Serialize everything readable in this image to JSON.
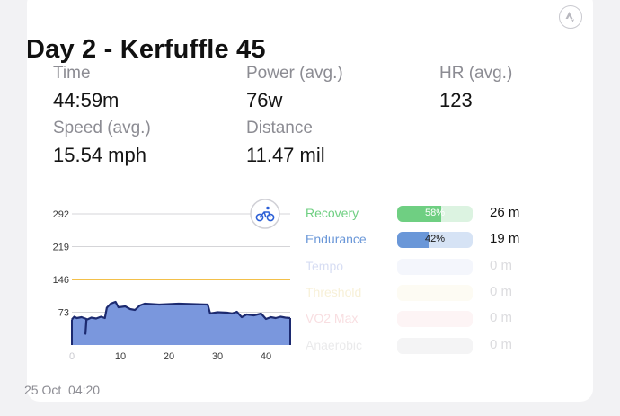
{
  "activity": {
    "title": "Day 2 - Kerfuffle 45",
    "date": "25 Oct",
    "time_of_day": "04:20",
    "badge_icon": "strava-icon",
    "sport_icon": "bicycle-icon"
  },
  "stats": {
    "time": {
      "label": "Time",
      "value": "44:59m"
    },
    "power": {
      "label": "Power (avg.)",
      "value": "76w"
    },
    "hr": {
      "label": "HR (avg.)",
      "value": "123"
    },
    "speed": {
      "label": "Speed (avg.)",
      "value": "15.54 mph"
    },
    "distance": {
      "label": "Distance",
      "value": "11.47 mil"
    }
  },
  "chart_data": {
    "type": "area",
    "x_ticks": [
      "0",
      "10",
      "20",
      "30",
      "40"
    ],
    "y_ticks": [
      "292",
      "219",
      "146",
      "73"
    ],
    "xlim": [
      0,
      45
    ],
    "ylim": [
      0,
      292
    ],
    "threshold_line": 146,
    "series": [
      {
        "points": [
          [
            0,
            57
          ],
          [
            0.5,
            63
          ],
          [
            1,
            60
          ],
          [
            2,
            62
          ],
          [
            3,
            58
          ],
          [
            2.8,
            25
          ],
          [
            3,
            56
          ],
          [
            4,
            61
          ],
          [
            5,
            59
          ],
          [
            6,
            63
          ],
          [
            6.8,
            60
          ],
          [
            7.2,
            83
          ],
          [
            8,
            92
          ],
          [
            9,
            96
          ],
          [
            9.6,
            84
          ],
          [
            11,
            86
          ],
          [
            12,
            80
          ],
          [
            13,
            78
          ],
          [
            14,
            88
          ],
          [
            15,
            92
          ],
          [
            18,
            90
          ],
          [
            22,
            92
          ],
          [
            25,
            91
          ],
          [
            28,
            90
          ],
          [
            28.5,
            70
          ],
          [
            30,
            73
          ],
          [
            32,
            72
          ],
          [
            33,
            70
          ],
          [
            34,
            74
          ],
          [
            35,
            62
          ],
          [
            36,
            68
          ],
          [
            37.5,
            66
          ],
          [
            39,
            70
          ],
          [
            40,
            58
          ],
          [
            41,
            62
          ],
          [
            42,
            60
          ],
          [
            43,
            63
          ],
          [
            44,
            61
          ],
          [
            45,
            60
          ]
        ],
        "color": "#7a97dd",
        "line_color": "#1c2a70"
      }
    ],
    "colors": {
      "threshold": "#f3c04a",
      "grid": "#d5d5d8",
      "fill": "#7a97dd",
      "outline": "#1c2a70"
    }
  },
  "zones": [
    {
      "name": "Recovery",
      "percent": "58%",
      "fraction": 0.58,
      "time": "26 m",
      "color": "#6fcf82",
      "bg": "#dcf3e1",
      "active": true
    },
    {
      "name": "Endurance",
      "percent": "42%",
      "fraction": 0.42,
      "time": "19 m",
      "color": "#6a97d8",
      "bg": "#d6e3f5",
      "active": true
    },
    {
      "name": "Tempo",
      "percent": "",
      "fraction": 0,
      "time": "0 m",
      "color": "#b7c3ea",
      "bg": "#f4f6fc",
      "active": false
    },
    {
      "name": "Threshold",
      "percent": "",
      "fraction": 0,
      "time": "0 m",
      "color": "#f2e5b8",
      "bg": "#fdfbf3",
      "active": false
    },
    {
      "name": "VO2 Max",
      "percent": "",
      "fraction": 0,
      "time": "0 m",
      "color": "#f4c4c9",
      "bg": "#fdf4f5",
      "active": false
    },
    {
      "name": "Anaerobic",
      "percent": "",
      "fraction": 0,
      "time": "0 m",
      "color": "#d9d9dc",
      "bg": "#f4f4f5",
      "active": false
    }
  ]
}
